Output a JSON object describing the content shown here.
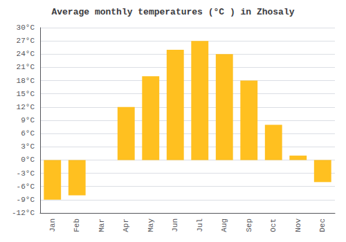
{
  "chart_data": {
    "type": "bar",
    "title": "Average monthly temperatures (°C ) in Zhosaly",
    "categories": [
      "Jan",
      "Feb",
      "Mar",
      "Apr",
      "May",
      "Jun",
      "Jul",
      "Aug",
      "Sep",
      "Oct",
      "Nov",
      "Dec"
    ],
    "values": [
      -9,
      -8,
      0,
      12,
      19,
      25,
      27,
      24,
      18,
      8,
      1,
      -5
    ],
    "color": "#FFC020",
    "ylim": [
      -12,
      30
    ],
    "yticks": [
      {
        "value": -12,
        "label": "-12°C"
      },
      {
        "value": -9,
        "label": "-9°C"
      },
      {
        "value": -6,
        "label": "-6°C"
      },
      {
        "value": -3,
        "label": "-3°C"
      },
      {
        "value": 0,
        "label": "0°C"
      },
      {
        "value": 3,
        "label": "3°C"
      },
      {
        "value": 6,
        "label": "6°C"
      },
      {
        "value": 9,
        "label": "9°C"
      },
      {
        "value": 12,
        "label": "12°C"
      },
      {
        "value": 15,
        "label": "15°C"
      },
      {
        "value": 18,
        "label": "18°C"
      },
      {
        "value": 21,
        "label": "21°C"
      },
      {
        "value": 24,
        "label": "24°C"
      },
      {
        "value": 27,
        "label": "27°C"
      },
      {
        "value": 30,
        "label": "30°C"
      }
    ],
    "grid": true
  }
}
